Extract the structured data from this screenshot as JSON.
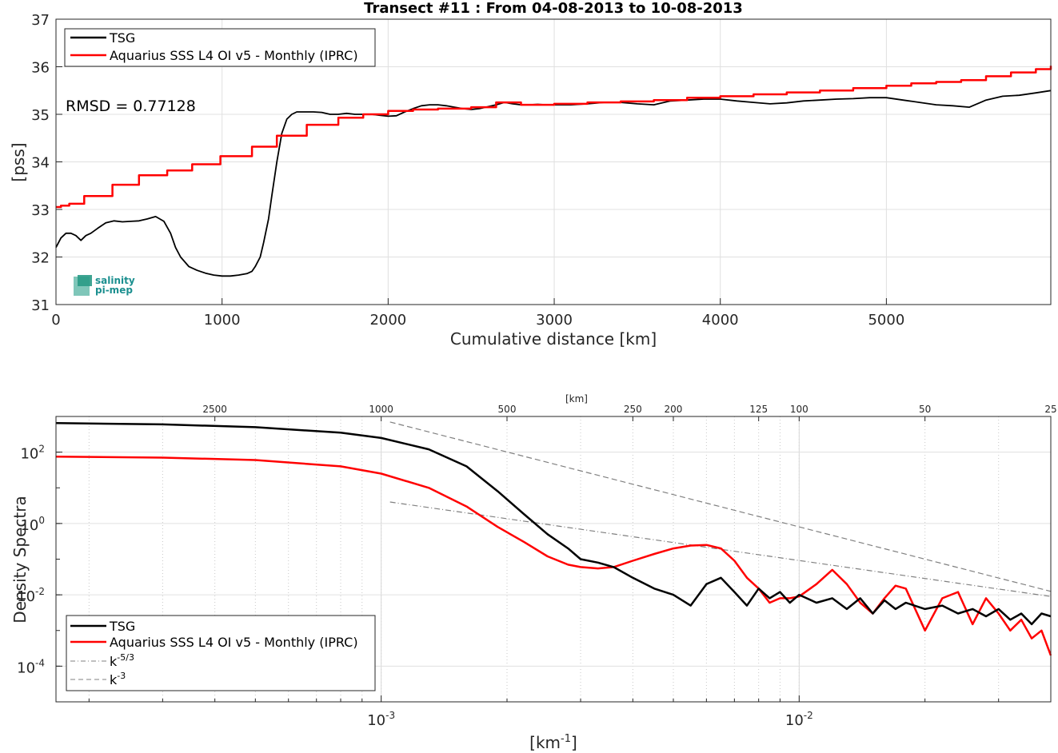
{
  "chart_data": [
    {
      "type": "line",
      "title": "Transect #11 : From 04-08-2013 to 10-08-2013",
      "xlabel": "Cumulative distance [km]",
      "ylabel": "[pss]",
      "xlim": [
        0,
        5990
      ],
      "ylim": [
        31,
        37
      ],
      "xticks": [
        "0",
        "1000",
        "2000",
        "3000",
        "4000",
        "5000"
      ],
      "yticks": [
        "31",
        "32",
        "33",
        "34",
        "35",
        "36",
        "37"
      ],
      "grid": true,
      "legend_position": "top-left",
      "annotation": "RMSD = 0.77128",
      "logo": "salinity pi-mep",
      "series": [
        {
          "name": "TSG",
          "color": "#000000",
          "x": [
            0,
            30,
            60,
            90,
            120,
            150,
            180,
            210,
            250,
            300,
            350,
            400,
            450,
            500,
            550,
            600,
            650,
            690,
            720,
            750,
            800,
            850,
            900,
            950,
            1000,
            1050,
            1100,
            1150,
            1180,
            1200,
            1230,
            1250,
            1280,
            1300,
            1330,
            1360,
            1390,
            1420,
            1450,
            1500,
            1550,
            1600,
            1650,
            1700,
            1750,
            1800,
            1850,
            1900,
            1950,
            2000,
            2050,
            2100,
            2150,
            2200,
            2250,
            2300,
            2350,
            2400,
            2450,
            2500,
            2550,
            2600,
            2650,
            2700,
            2750,
            2800,
            2850,
            2900,
            2950,
            3000,
            3100,
            3200,
            3300,
            3400,
            3500,
            3600,
            3700,
            3800,
            3900,
            4000,
            4100,
            4200,
            4300,
            4400,
            4500,
            4600,
            4700,
            4800,
            4900,
            5000,
            5100,
            5200,
            5300,
            5400,
            5500,
            5600,
            5700,
            5800,
            5900,
            5990
          ],
          "y": [
            32.2,
            32.4,
            32.5,
            32.5,
            32.45,
            32.35,
            32.45,
            32.5,
            32.6,
            32.72,
            32.76,
            32.74,
            32.75,
            32.76,
            32.8,
            32.85,
            32.75,
            32.5,
            32.2,
            32.0,
            31.8,
            31.72,
            31.66,
            31.62,
            31.6,
            31.6,
            31.62,
            31.65,
            31.7,
            31.8,
            32.0,
            32.3,
            32.8,
            33.3,
            34.0,
            34.6,
            34.9,
            35.0,
            35.05,
            35.05,
            35.05,
            35.04,
            35.0,
            35.0,
            35.02,
            35.0,
            35.0,
            35.0,
            34.98,
            34.96,
            34.97,
            35.05,
            35.12,
            35.18,
            35.2,
            35.2,
            35.18,
            35.15,
            35.12,
            35.1,
            35.12,
            35.16,
            35.2,
            35.25,
            35.22,
            35.2,
            35.2,
            35.21,
            35.2,
            35.2,
            35.2,
            35.22,
            35.25,
            35.25,
            35.22,
            35.2,
            35.28,
            35.3,
            35.32,
            35.32,
            35.28,
            35.25,
            35.22,
            35.24,
            35.28,
            35.3,
            35.32,
            35.33,
            35.35,
            35.35,
            35.3,
            35.25,
            35.2,
            35.18,
            35.15,
            35.3,
            35.38,
            35.4,
            35.45,
            35.5
          ]
        },
        {
          "name": "Aquarius SSS L4 OI v5 - Monthly (IPRC)",
          "color": "#ff0000",
          "x": [
            0,
            30,
            80,
            170,
            340,
            500,
            670,
            820,
            990,
            1180,
            1330,
            1510,
            1700,
            1850,
            2000,
            2150,
            2300,
            2500,
            2650,
            2800,
            3000,
            3200,
            3400,
            3600,
            3800,
            4000,
            4200,
            4400,
            4600,
            4800,
            5000,
            5150,
            5300,
            5450,
            5600,
            5750,
            5900,
            5990
          ],
          "y": [
            33.05,
            33.08,
            33.12,
            33.28,
            33.52,
            33.72,
            33.82,
            33.95,
            34.12,
            34.32,
            34.55,
            34.78,
            34.93,
            35.0,
            35.07,
            35.1,
            35.12,
            35.15,
            35.25,
            35.2,
            35.22,
            35.25,
            35.27,
            35.3,
            35.35,
            35.38,
            35.42,
            35.46,
            35.5,
            35.55,
            35.6,
            35.65,
            35.68,
            35.72,
            35.8,
            35.88,
            35.95,
            36.02
          ]
        }
      ]
    },
    {
      "type": "line",
      "title": "",
      "xlabel": "[km-1]",
      "ylabel": "Density Spectra",
      "top_xlabel": "[km]",
      "top_xticks": [
        "2500",
        "1000",
        "500",
        "250",
        "200",
        "125",
        "100",
        "50",
        "25"
      ],
      "xticks": [
        "10-3",
        "10-2"
      ],
      "yticks": [
        "10-4",
        "10-2",
        "100",
        "102"
      ],
      "xscale": "log",
      "yscale": "log",
      "xlim": [
        0.0001667,
        0.04
      ],
      "ylim": [
        1e-05,
        1000
      ],
      "grid": true,
      "legend_position": "bottom-left",
      "series": [
        {
          "name": "TSG",
          "color": "#000000",
          "x": [
            0.0001667,
            0.0003,
            0.0005,
            0.0008,
            0.001,
            0.0013,
            0.0016,
            0.0019,
            0.0022,
            0.0025,
            0.0028,
            0.003,
            0.0033,
            0.0036,
            0.004,
            0.0045,
            0.005,
            0.0055,
            0.006,
            0.0065,
            0.007,
            0.0075,
            0.008,
            0.0085,
            0.009,
            0.0095,
            0.01,
            0.011,
            0.012,
            0.013,
            0.014,
            0.015,
            0.016,
            0.017,
            0.018,
            0.02,
            0.022,
            0.024,
            0.026,
            0.028,
            0.03,
            0.032,
            0.034,
            0.036,
            0.038,
            0.04
          ],
          "y": [
            650,
            600,
            500,
            350,
            250,
            120,
            40,
            8,
            1.8,
            0.5,
            0.2,
            0.1,
            0.08,
            0.06,
            0.03,
            0.015,
            0.01,
            0.005,
            0.02,
            0.03,
            0.012,
            0.005,
            0.015,
            0.008,
            0.012,
            0.006,
            0.01,
            0.006,
            0.008,
            0.004,
            0.008,
            0.003,
            0.007,
            0.004,
            0.006,
            0.004,
            0.005,
            0.003,
            0.004,
            0.0025,
            0.004,
            0.002,
            0.003,
            0.0015,
            0.003,
            0.0025
          ]
        },
        {
          "name": "Aquarius SSS L4 OI v5 - Monthly (IPRC)",
          "color": "#ff0000",
          "x": [
            0.0001667,
            0.0003,
            0.0005,
            0.0008,
            0.001,
            0.0013,
            0.0016,
            0.0019,
            0.0022,
            0.0025,
            0.0028,
            0.003,
            0.0033,
            0.0036,
            0.004,
            0.0045,
            0.005,
            0.0055,
            0.006,
            0.0065,
            0.007,
            0.0075,
            0.008,
            0.0085,
            0.009,
            0.0095,
            0.01,
            0.011,
            0.012,
            0.013,
            0.014,
            0.015,
            0.016,
            0.017,
            0.018,
            0.02,
            0.022,
            0.024,
            0.026,
            0.028,
            0.03,
            0.032,
            0.034,
            0.036,
            0.038,
            0.04
          ],
          "y": [
            75,
            70,
            60,
            40,
            25,
            10,
            3,
            0.8,
            0.3,
            0.12,
            0.07,
            0.06,
            0.055,
            0.06,
            0.09,
            0.14,
            0.2,
            0.24,
            0.25,
            0.2,
            0.09,
            0.03,
            0.015,
            0.006,
            0.008,
            0.008,
            0.009,
            0.02,
            0.05,
            0.02,
            0.006,
            0.003,
            0.008,
            0.018,
            0.015,
            0.001,
            0.008,
            0.012,
            0.0015,
            0.008,
            0.003,
            0.001,
            0.002,
            0.0006,
            0.001,
            0.0002
          ]
        },
        {
          "name": "k-5/3",
          "color": "#808080",
          "style": "dashdot",
          "x": [
            0.00105,
            0.04
          ],
          "y": [
            4.0,
            0.009
          ]
        },
        {
          "name": "k-3",
          "color": "#808080",
          "style": "dashed",
          "x": [
            0.00105,
            0.04
          ],
          "y": [
            700,
            0.0125
          ]
        }
      ]
    }
  ]
}
